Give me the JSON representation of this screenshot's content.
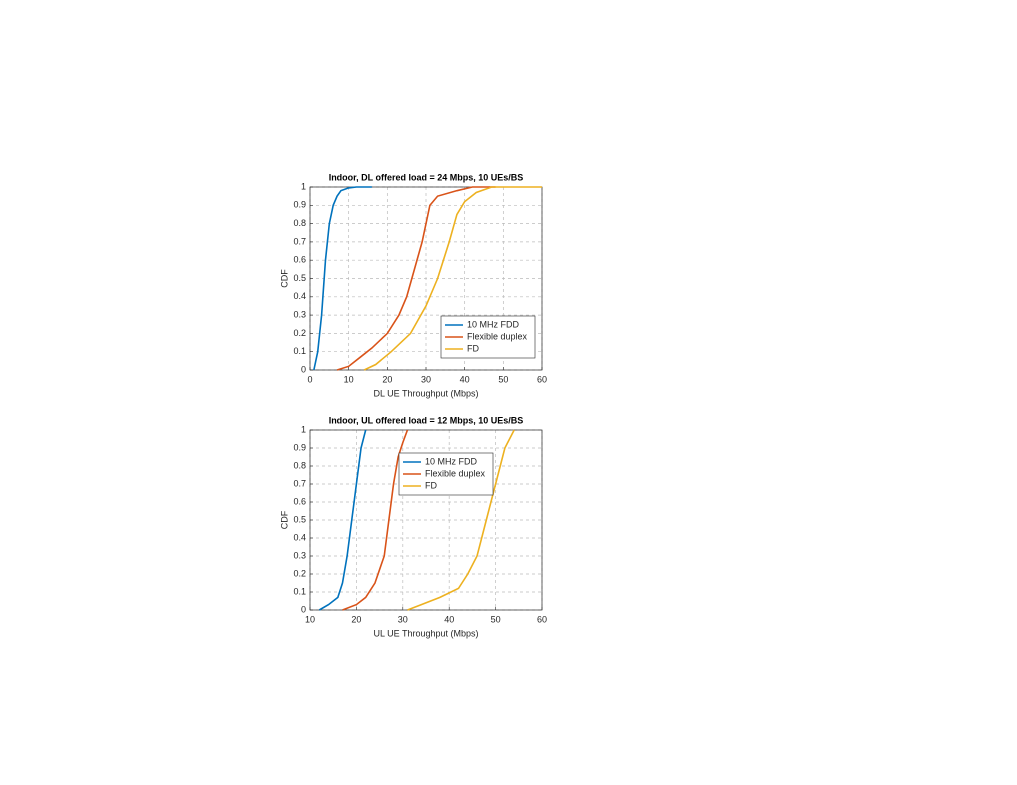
{
  "chart_data": [
    {
      "type": "line",
      "title": "Indoor, DL offered load = 24 Mbps, 10 UEs/BS",
      "x_label": "DL UE Throughput (Mbps)",
      "y_label": "CDF",
      "xlim": [
        0,
        60
      ],
      "xticks": [
        0,
        10,
        20,
        30,
        40,
        50,
        60
      ],
      "ylim": [
        0,
        1
      ],
      "yticks": [
        0,
        0.1,
        0.2,
        0.3,
        0.4,
        0.5,
        0.6,
        0.7,
        0.8,
        0.9,
        1
      ],
      "grid": true,
      "legend": "lower right",
      "series": [
        {
          "name": "10 MHz FDD",
          "color": "#0072bd",
          "x": [
            1,
            2,
            3,
            4,
            5,
            6,
            7,
            8,
            10,
            12,
            16
          ],
          "values": [
            0,
            0.1,
            0.3,
            0.6,
            0.8,
            0.9,
            0.95,
            0.98,
            0.995,
            1,
            1
          ]
        },
        {
          "name": "Flexible duplex",
          "color": "#d95319",
          "x": [
            7,
            10,
            13,
            16,
            20,
            23,
            25,
            27,
            29,
            31,
            33,
            38,
            42,
            48
          ],
          "values": [
            0,
            0.02,
            0.07,
            0.12,
            0.2,
            0.3,
            0.4,
            0.55,
            0.7,
            0.9,
            0.95,
            0.98,
            1,
            1
          ]
        },
        {
          "name": "FD",
          "color": "#edb120",
          "x": [
            14,
            17,
            21,
            26,
            30,
            33,
            36,
            38,
            40,
            43,
            47,
            60
          ],
          "values": [
            0,
            0.03,
            0.1,
            0.2,
            0.35,
            0.5,
            0.7,
            0.85,
            0.92,
            0.97,
            1,
            1
          ]
        }
      ]
    },
    {
      "type": "line",
      "title": "Indoor, UL offered load = 12 Mbps, 10 UEs/BS",
      "x_label": "UL UE Throughput (Mbps)",
      "y_label": "CDF",
      "xlim": [
        10,
        60
      ],
      "xticks": [
        10,
        20,
        30,
        40,
        50,
        60
      ],
      "ylim": [
        0,
        1
      ],
      "yticks": [
        0,
        0.1,
        0.2,
        0.3,
        0.4,
        0.5,
        0.6,
        0.7,
        0.8,
        0.9,
        1
      ],
      "grid": true,
      "legend": "upper center",
      "series": [
        {
          "name": "10 MHz FDD",
          "color": "#0072bd",
          "x": [
            12,
            14,
            16,
            17,
            18,
            19,
            20,
            21,
            22
          ],
          "values": [
            0,
            0.03,
            0.07,
            0.15,
            0.3,
            0.5,
            0.7,
            0.9,
            1
          ]
        },
        {
          "name": "Flexible duplex",
          "color": "#d95319",
          "x": [
            17,
            20,
            22,
            24,
            26,
            27,
            28,
            29,
            30,
            31
          ],
          "values": [
            0,
            0.03,
            0.07,
            0.15,
            0.3,
            0.5,
            0.7,
            0.85,
            0.93,
            1
          ]
        },
        {
          "name": "FD",
          "color": "#edb120",
          "x": [
            31,
            34,
            38,
            42,
            44,
            46,
            48,
            50,
            52,
            54
          ],
          "values": [
            0,
            0.03,
            0.07,
            0.12,
            0.2,
            0.3,
            0.5,
            0.7,
            0.9,
            1
          ]
        }
      ]
    }
  ]
}
